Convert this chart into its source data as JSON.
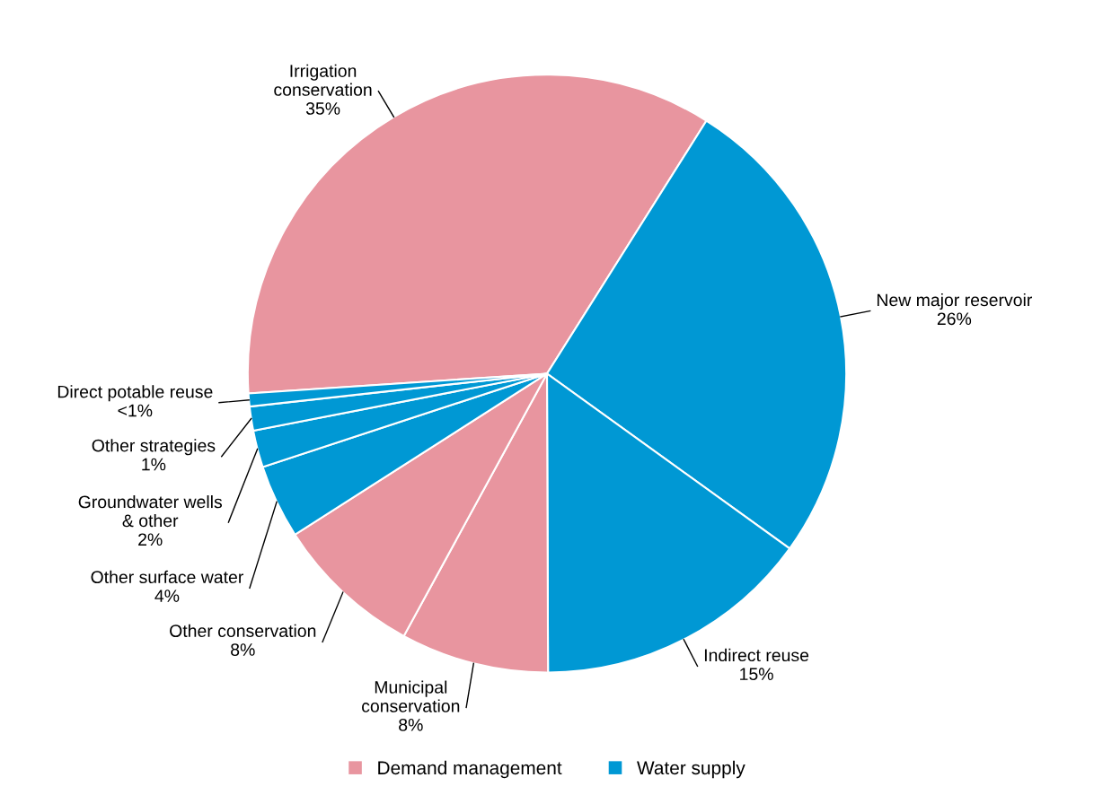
{
  "chart_data": {
    "type": "pie",
    "categories": [
      "Irrigation\nconservation",
      "New major reservoir",
      "Indirect reuse",
      "Municipal\nconservation",
      "Other conservation",
      "Other surface water",
      "Groundwater wells\n& other",
      "Other strategies",
      "Direct potable reuse"
    ],
    "values": [
      35,
      26,
      15,
      8,
      8,
      4,
      2,
      1.3,
      0.7
    ],
    "colors": [
      "#e8959f",
      "#0098d4",
      "#0098d4",
      "#e8959f",
      "#e8959f",
      "#0098d4",
      "#0098d4",
      "#0098d4",
      "#0098d4"
    ],
    "value_labels": [
      "35%",
      "26%",
      "15%",
      "8%",
      "8%",
      "4%",
      "2%",
      "1%",
      "<1%"
    ],
    "annotations": [
      "Demand management",
      "Water supply"
    ]
  }
}
